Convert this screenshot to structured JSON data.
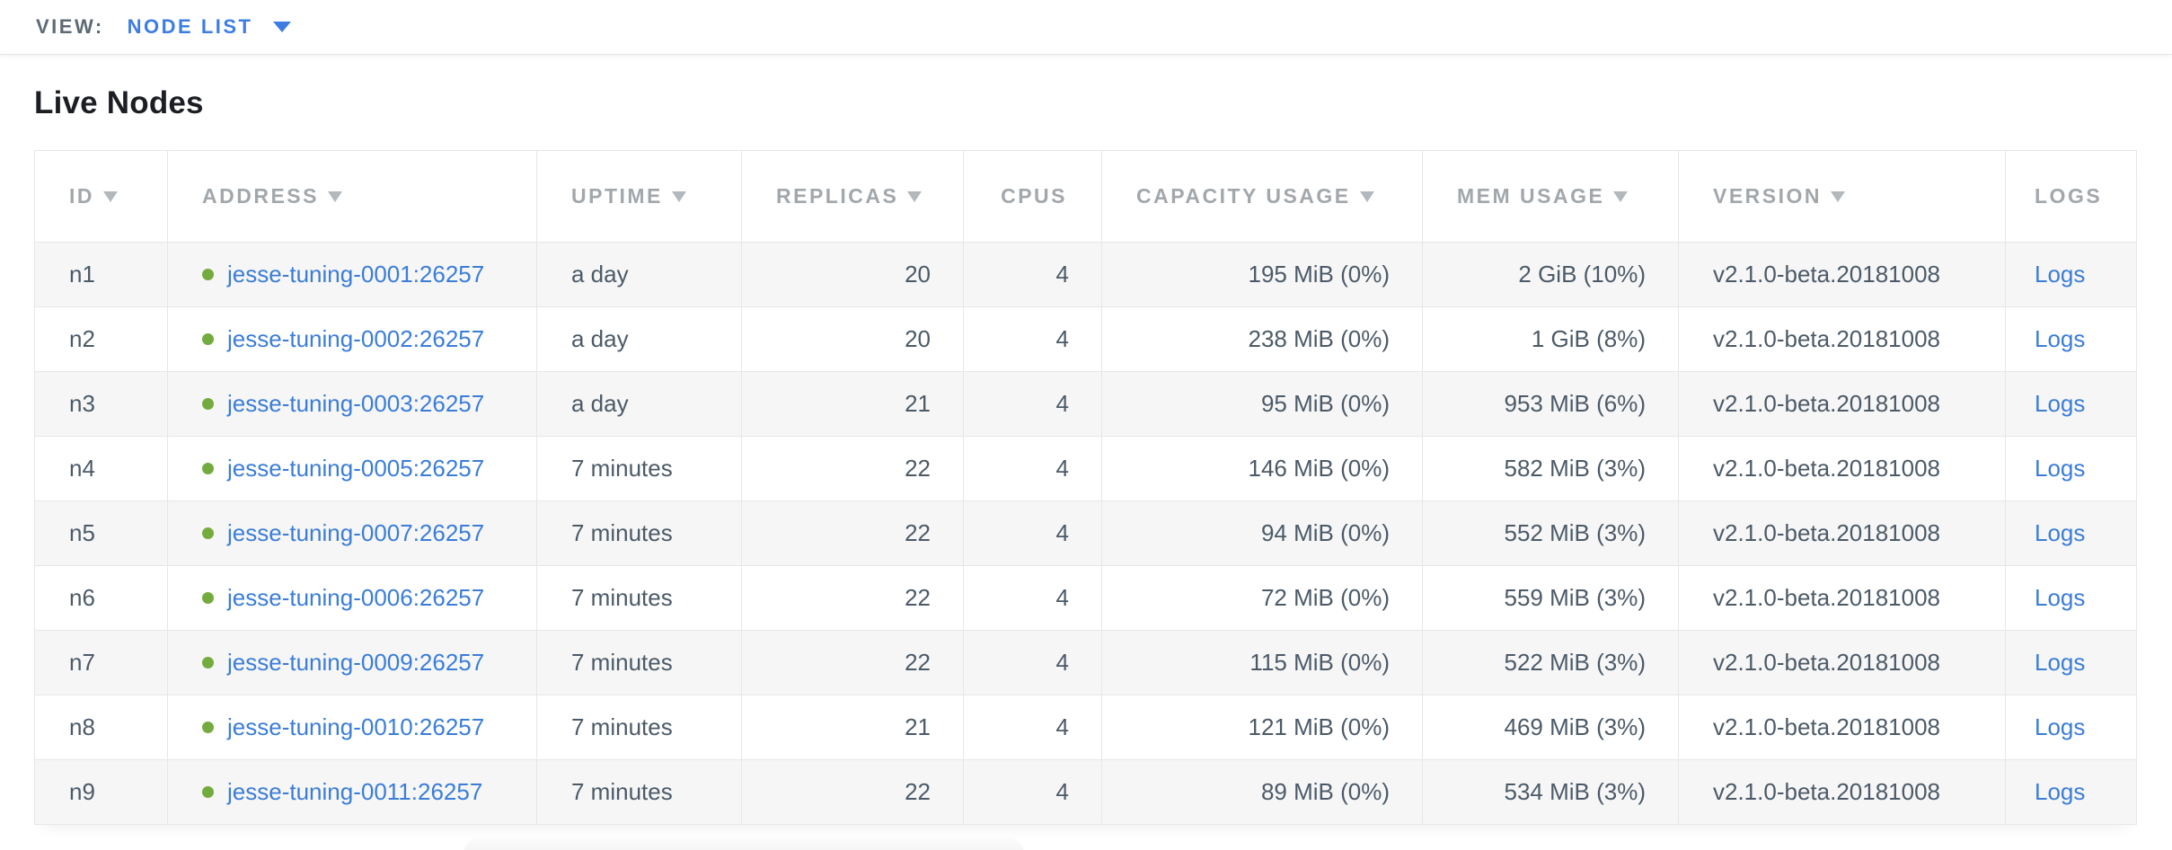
{
  "view_bar": {
    "label": "VIEW:",
    "selected": "NODE LIST",
    "caret_icon": "caret-down-icon"
  },
  "page": {
    "title": "Live Nodes"
  },
  "colors": {
    "accent_blue": "#3b7dd8",
    "status_green": "#74ab3e",
    "header_gray": "#a2a7ac",
    "cell_text": "#4c5a68",
    "row_alt_bg": "#f6f6f6",
    "border": "#e7e7e7"
  },
  "table": {
    "columns": [
      {
        "label": "ID",
        "sorted": true
      },
      {
        "label": "ADDRESS",
        "sorted": true
      },
      {
        "label": "UPTIME",
        "sorted": true
      },
      {
        "label": "REPLICAS",
        "sorted": true
      },
      {
        "label": "CPUS",
        "sorted": false
      },
      {
        "label": "CAPACITY USAGE",
        "sorted": true
      },
      {
        "label": "MEM USAGE",
        "sorted": true
      },
      {
        "label": "VERSION",
        "sorted": true
      },
      {
        "label": "LOGS",
        "sorted": false
      }
    ],
    "rows": [
      {
        "id": "n1",
        "status_icon": "green-dot",
        "address": "jesse-tuning-0001:26257",
        "uptime": "a day",
        "replicas": "20",
        "cpus": "4",
        "capacity_usage": "195 MiB (0%)",
        "mem_usage": "2 GiB (10%)",
        "version": "v2.1.0-beta.20181008",
        "logs_label": "Logs"
      },
      {
        "id": "n2",
        "status_icon": "green-dot",
        "address": "jesse-tuning-0002:26257",
        "uptime": "a day",
        "replicas": "20",
        "cpus": "4",
        "capacity_usage": "238 MiB (0%)",
        "mem_usage": "1 GiB (8%)",
        "version": "v2.1.0-beta.20181008",
        "logs_label": "Logs"
      },
      {
        "id": "n3",
        "status_icon": "green-dot",
        "address": "jesse-tuning-0003:26257",
        "uptime": "a day",
        "replicas": "21",
        "cpus": "4",
        "capacity_usage": "95 MiB (0%)",
        "mem_usage": "953 MiB (6%)",
        "version": "v2.1.0-beta.20181008",
        "logs_label": "Logs"
      },
      {
        "id": "n4",
        "status_icon": "green-dot",
        "address": "jesse-tuning-0005:26257",
        "uptime": "7 minutes",
        "replicas": "22",
        "cpus": "4",
        "capacity_usage": "146 MiB (0%)",
        "mem_usage": "582 MiB (3%)",
        "version": "v2.1.0-beta.20181008",
        "logs_label": "Logs"
      },
      {
        "id": "n5",
        "status_icon": "green-dot",
        "address": "jesse-tuning-0007:26257",
        "uptime": "7 minutes",
        "replicas": "22",
        "cpus": "4",
        "capacity_usage": "94 MiB (0%)",
        "mem_usage": "552 MiB (3%)",
        "version": "v2.1.0-beta.20181008",
        "logs_label": "Logs"
      },
      {
        "id": "n6",
        "status_icon": "green-dot",
        "address": "jesse-tuning-0006:26257",
        "uptime": "7 minutes",
        "replicas": "22",
        "cpus": "4",
        "capacity_usage": "72 MiB (0%)",
        "mem_usage": "559 MiB (3%)",
        "version": "v2.1.0-beta.20181008",
        "logs_label": "Logs"
      },
      {
        "id": "n7",
        "status_icon": "green-dot",
        "address": "jesse-tuning-0009:26257",
        "uptime": "7 minutes",
        "replicas": "22",
        "cpus": "4",
        "capacity_usage": "115 MiB (0%)",
        "mem_usage": "522 MiB (3%)",
        "version": "v2.1.0-beta.20181008",
        "logs_label": "Logs"
      },
      {
        "id": "n8",
        "status_icon": "green-dot",
        "address": "jesse-tuning-0010:26257",
        "uptime": "7 minutes",
        "replicas": "21",
        "cpus": "4",
        "capacity_usage": "121 MiB (0%)",
        "mem_usage": "469 MiB (3%)",
        "version": "v2.1.0-beta.20181008",
        "logs_label": "Logs"
      },
      {
        "id": "n9",
        "status_icon": "green-dot",
        "address": "jesse-tuning-0011:26257",
        "uptime": "7 minutes",
        "replicas": "22",
        "cpus": "4",
        "capacity_usage": "89 MiB (0%)",
        "mem_usage": "534 MiB (3%)",
        "version": "v2.1.0-beta.20181008",
        "logs_label": "Logs"
      }
    ]
  }
}
